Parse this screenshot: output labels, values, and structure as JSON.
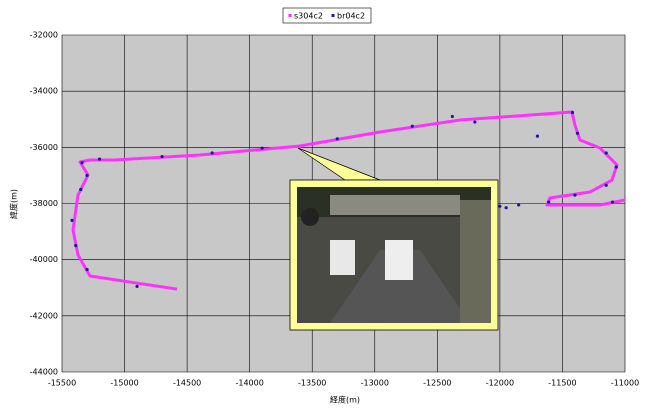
{
  "chart_data": {
    "type": "scatter",
    "x_label": "経度(m)",
    "y_label": "緯度(m)",
    "xlim": [
      -15500,
      -11000
    ],
    "xticks": [
      -15500,
      -15000,
      -14500,
      -14000,
      -13500,
      -13000,
      -12500,
      -12000,
      -11500,
      -11000
    ],
    "ylim": [
      -44000,
      -32000
    ],
    "yticks": [
      -44000,
      -42000,
      -40000,
      -38000,
      -36000,
      -34000,
      -32000
    ],
    "grid": true,
    "legend": "top",
    "series": [
      {
        "name": "s304c2",
        "color": "#ff33ff",
        "x": [
          -14580,
          -15276,
          -15372,
          -15412,
          -15372,
          -15292,
          -15356,
          -15276,
          -15076,
          -14397,
          -13598,
          -12958,
          -12318,
          -11424,
          -11400,
          -11360,
          -11200,
          -11064,
          -11104,
          -11280,
          -11600,
          -11624,
          -11200,
          -11000
        ],
        "values": [
          -41050,
          -40582,
          -39834,
          -38944,
          -37698,
          -36985,
          -36522,
          -36451,
          -36451,
          -36273,
          -35953,
          -35454,
          -35027,
          -34742,
          -35205,
          -35739,
          -36024,
          -36629,
          -37164,
          -37591,
          -37805,
          -38054,
          -38054,
          -37876
        ]
      },
      {
        "name": "br04c2",
        "color": "#1a1aa0",
        "x": [
          -14900,
          -15300,
          -15390,
          -15420,
          -15350,
          -15300,
          -15340,
          -15200,
          -14700,
          -14300,
          -13900,
          -13300,
          -12700,
          -12380,
          -12200,
          -11700,
          -11420,
          -11380,
          -11150,
          -11070,
          -11150,
          -11400,
          -11610,
          -11950,
          -12000,
          -11850,
          -11100
        ],
        "values": [
          -40950,
          -40350,
          -39500,
          -38600,
          -37500,
          -37000,
          -36550,
          -36420,
          -36330,
          -36200,
          -36030,
          -35700,
          -35250,
          -34900,
          -35100,
          -35600,
          -34760,
          -35500,
          -36200,
          -36700,
          -37350,
          -37700,
          -37950,
          -38150,
          -38100,
          -38050,
          -37950
        ]
      }
    ]
  }
}
